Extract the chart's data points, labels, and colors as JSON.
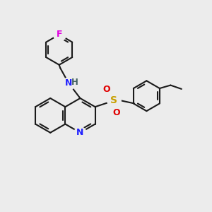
{
  "background_color": "#ececec",
  "bond_color": "#1a1a1a",
  "bond_width": 1.5,
  "atom_colors": {
    "F": "#e000e0",
    "N_amine": "#2020ff",
    "H": "#406060",
    "S": "#c8a000",
    "O": "#e00000",
    "N_ring": "#2020ff"
  },
  "figsize": [
    3.0,
    3.0
  ],
  "dpi": 100
}
